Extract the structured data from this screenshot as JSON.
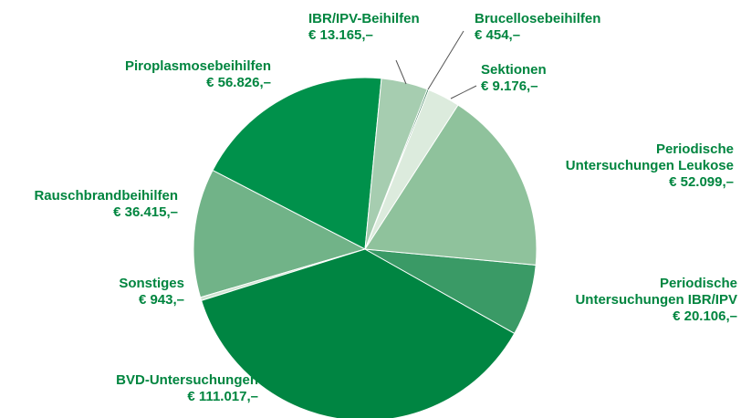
{
  "chart_data": {
    "type": "pie",
    "categories": [
      "IBR/IPV-Beihilfen",
      "Brucellosebeihilfen",
      "Sektionen",
      "Periodische\nUntersuchungen Leukose",
      "Periodische\nUntersuchungen IBR/IPV",
      "BVD-Untersuchungen",
      "Sonstiges",
      "Rauschbrandbeihilfen",
      "Piroplasmosebeihilfen"
    ],
    "values": [
      13165,
      454,
      9176,
      52099,
      20106,
      111017,
      943,
      36415,
      56826
    ],
    "value_labels": [
      "€ 13.165,–",
      "€ 454,–",
      "€ 9.176,–",
      "€ 52.099,–",
      "€ 20.106,–",
      "€ 111.017,–",
      "€ 943,–",
      "€ 36.415,–",
      "€ 56.826,–"
    ],
    "colors": [
      "#a6cdb0",
      "#1f6e45",
      "#dcebdd",
      "#8fc29c",
      "#3a9a66",
      "#008542",
      "#cfe5d2",
      "#71b388",
      "#00914b"
    ]
  }
}
